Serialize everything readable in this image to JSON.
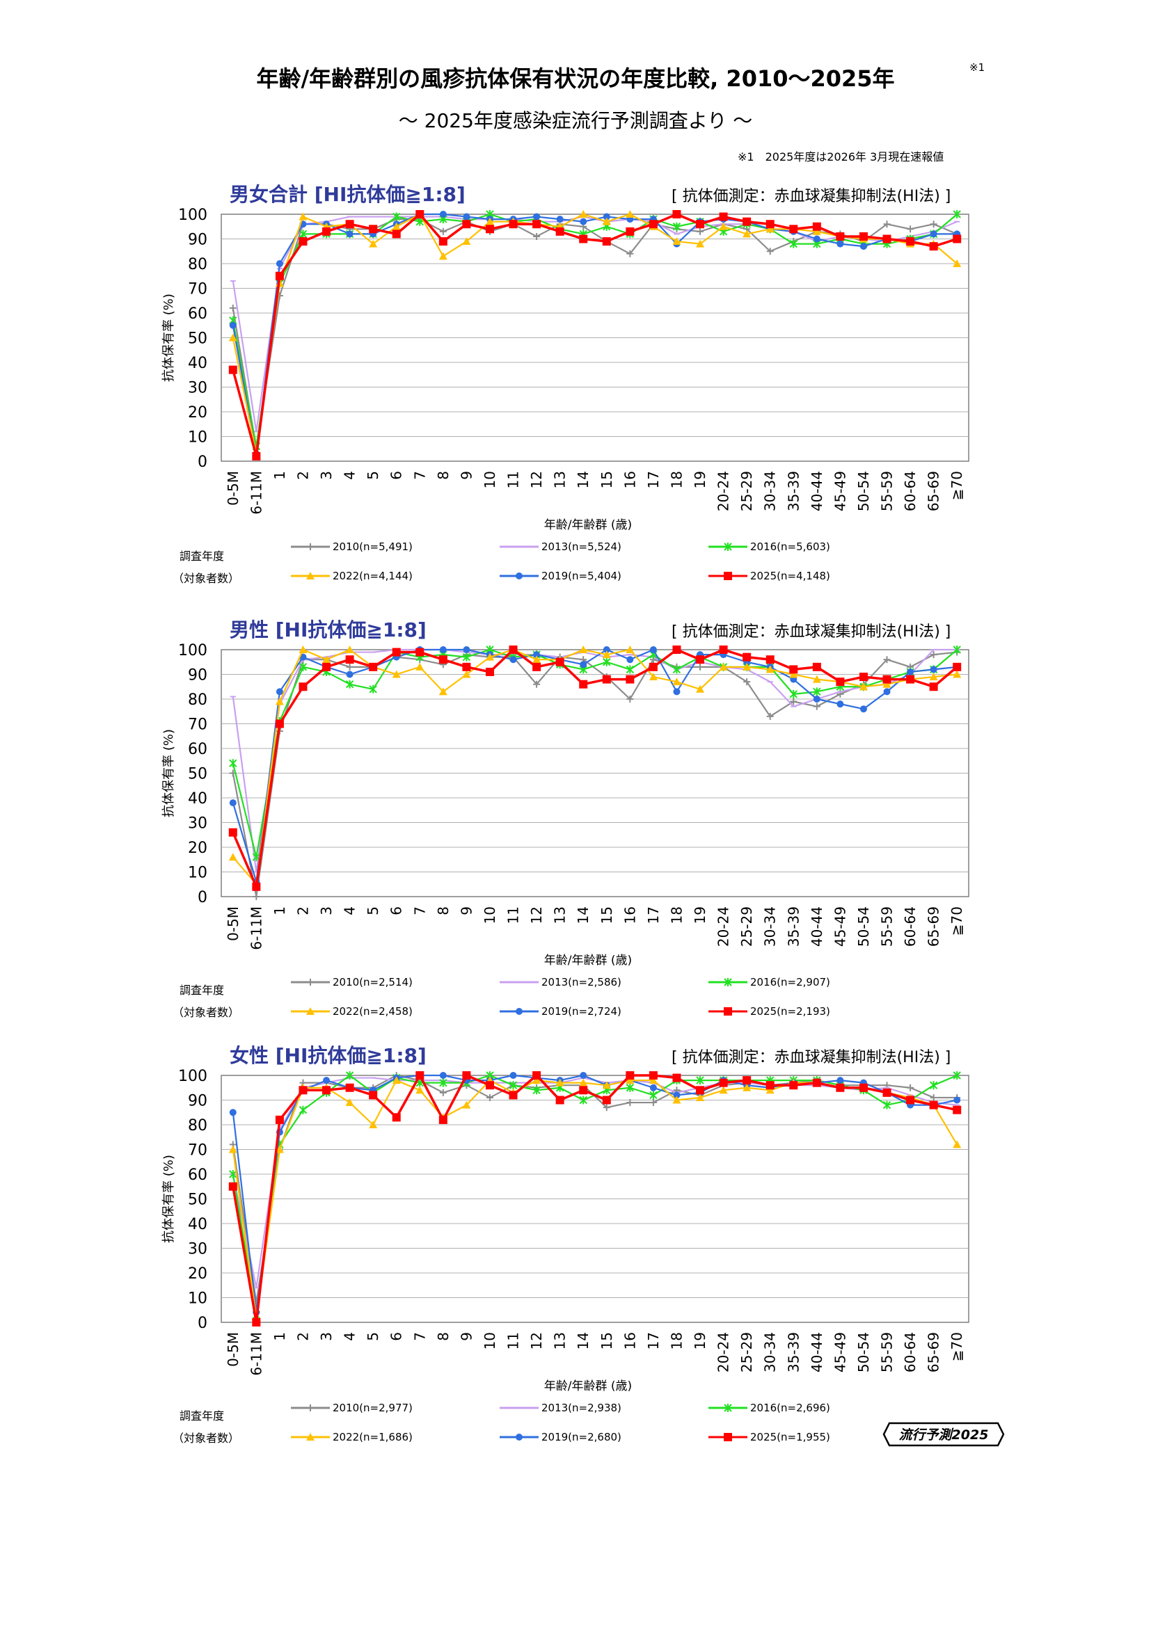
{
  "header": {
    "title": "年齢/年齢群別の風疹抗体保有状況の年度比較, 2010～2025年",
    "title_note": "※1",
    "subtitle": "～ 2025年度感染症流行予測調査より ～",
    "note": "※1　2025年度は2026年 3月現在速報値"
  },
  "legend_head": {
    "line1": "調査年度",
    "line2": "（対象者数）"
  },
  "logo_text": "流行予測2025",
  "colors": {
    "2010": "#8c8c8c",
    "2013": "#c9a0f0",
    "2016": "#21e021",
    "2019": "#2f6fe0",
    "2022": "#ffc000",
    "2025": "#ff0000",
    "title": "#2f3b9a"
  },
  "chart_data": [
    {
      "type": "line",
      "title": "男女合計 [HI抗体価≧1:8]",
      "method": "[ 抗体価測定：赤血球凝集抑制法(HI法) ]",
      "xlabel": "年齢/年齢群 (歳)",
      "ylabel": "抗体保有率 (%)",
      "ylim": [
        0,
        100
      ],
      "yticks": [
        0,
        10,
        20,
        30,
        40,
        50,
        60,
        70,
        80,
        90,
        100
      ],
      "categories": [
        "0-5M",
        "6-11M",
        "1",
        "2",
        "3",
        "4",
        "5",
        "6",
        "7",
        "8",
        "9",
        "10",
        "11",
        "12",
        "13",
        "14",
        "15",
        "16",
        "17",
        "18",
        "19",
        "20-24",
        "25-29",
        "30-34",
        "35-39",
        "40-44",
        "45-49",
        "50-54",
        "55-59",
        "60-64",
        "65-69",
        "≧70"
      ],
      "series": [
        {
          "name": "2010(n=5,491)",
          "year": "2010",
          "values": [
            62,
            5,
            67,
            96,
            96,
            94,
            94,
            98,
            98,
            93,
            97,
            93,
            96,
            91,
            96,
            95,
            89,
            84,
            96,
            94,
            93,
            96,
            94,
            85,
            89,
            93,
            92,
            89,
            96,
            94,
            96,
            92
          ]
        },
        {
          "name": "2013(n=5,524)",
          "year": "2013",
          "values": [
            73,
            12,
            78,
            96,
            97,
            99,
            99,
            99,
            99,
            99,
            98,
            98,
            98,
            97,
            97,
            99,
            97,
            98,
            97,
            92,
            95,
            96,
            96,
            94,
            93,
            89,
            91,
            90,
            89,
            91,
            93,
            97
          ]
        },
        {
          "name": "2016(n=5,603)",
          "year": "2016",
          "values": [
            57,
            6,
            72,
            92,
            92,
            92,
            92,
            99,
            97,
            98,
            97,
            100,
            97,
            98,
            94,
            92,
            95,
            92,
            98,
            95,
            97,
            93,
            96,
            94,
            88,
            88,
            90,
            88,
            88,
            90,
            92,
            100
          ]
        },
        {
          "name": "2019(n=5,404)",
          "year": "2019",
          "values": [
            55,
            3,
            80,
            96,
            96,
            92,
            92,
            96,
            100,
            100,
            99,
            98,
            98,
            99,
            98,
            97,
            99,
            98,
            98,
            88,
            97,
            98,
            97,
            94,
            93,
            90,
            88,
            87,
            90,
            89,
            92,
            92
          ]
        },
        {
          "name": "2022(n=4,144)",
          "year": "2022",
          "values": [
            50,
            3,
            72,
            99,
            95,
            96,
            88,
            95,
            100,
            83,
            89,
            97,
            97,
            96,
            95,
            100,
            97,
            100,
            95,
            89,
            88,
            95,
            92,
            94,
            94,
            93,
            91,
            90,
            90,
            88,
            88,
            80
          ]
        },
        {
          "name": "2025(n=4,148)",
          "year": "2025",
          "values": [
            37,
            2,
            75,
            89,
            93,
            96,
            94,
            92,
            100,
            89,
            96,
            94,
            96,
            96,
            93,
            90,
            89,
            93,
            96,
            100,
            96,
            99,
            97,
            96,
            94,
            95,
            91,
            91,
            90,
            89,
            87,
            90
          ]
        }
      ]
    },
    {
      "type": "line",
      "title": "男性 [HI抗体価≧1:8]",
      "method": "[ 抗体価測定：赤血球凝集抑制法(HI法) ]",
      "xlabel": "年齢/年齢群 (歳)",
      "ylabel": "抗体保有率 (%)",
      "ylim": [
        0,
        100
      ],
      "yticks": [
        0,
        10,
        20,
        30,
        40,
        50,
        60,
        70,
        80,
        90,
        100
      ],
      "categories": [
        "0-5M",
        "6-11M",
        "1",
        "2",
        "3",
        "4",
        "5",
        "6",
        "7",
        "8",
        "9",
        "10",
        "11",
        "12",
        "13",
        "14",
        "15",
        "16",
        "17",
        "18",
        "19",
        "20-24",
        "25-29",
        "30-34",
        "35-39",
        "40-44",
        "45-49",
        "50-54",
        "55-59",
        "60-64",
        "65-69",
        "≧70"
      ],
      "series": [
        {
          "name": "2010(n=2,514)",
          "year": "2010",
          "values": [
            50,
            0,
            67,
            96,
            96,
            93,
            93,
            97,
            96,
            94,
            98,
            97,
            97,
            86,
            97,
            96,
            89,
            80,
            96,
            93,
            93,
            93,
            87,
            73,
            79,
            77,
            82,
            86,
            96,
            93,
            98,
            99
          ]
        },
        {
          "name": "2013(n=2,586)",
          "year": "2013",
          "values": [
            81,
            10,
            78,
            96,
            97,
            99,
            99,
            100,
            100,
            100,
            99,
            98,
            98,
            98,
            97,
            99,
            97,
            98,
            97,
            92,
            95,
            93,
            92,
            87,
            77,
            80,
            83,
            85,
            86,
            90,
            100,
            100
          ]
        },
        {
          "name": "2016(n=2,907)",
          "year": "2016",
          "values": [
            54,
            16,
            71,
            93,
            91,
            86,
            84,
            99,
            97,
            98,
            97,
            100,
            97,
            98,
            94,
            92,
            95,
            92,
            98,
            92,
            97,
            93,
            93,
            93,
            82,
            83,
            85,
            85,
            88,
            91,
            92,
            100
          ]
        },
        {
          "name": "2019(n=2,724)",
          "year": "2019",
          "values": [
            38,
            6,
            83,
            97,
            93,
            90,
            93,
            97,
            100,
            100,
            100,
            98,
            96,
            98,
            96,
            94,
            100,
            96,
            100,
            83,
            98,
            98,
            95,
            93,
            88,
            80,
            78,
            76,
            83,
            91,
            92,
            93
          ]
        },
        {
          "name": "2022(n=2,458)",
          "year": "2022",
          "values": [
            16,
            5,
            79,
            100,
            96,
            100,
            93,
            90,
            93,
            83,
            90,
            97,
            100,
            96,
            96,
            100,
            98,
            100,
            89,
            87,
            84,
            93,
            93,
            92,
            90,
            88,
            87,
            85,
            86,
            88,
            89,
            90
          ]
        },
        {
          "name": "2025(n=2,193)",
          "year": "2025",
          "values": [
            26,
            4,
            70,
            85,
            93,
            96,
            93,
            99,
            99,
            96,
            93,
            91,
            100,
            93,
            95,
            86,
            88,
            88,
            93,
            100,
            96,
            100,
            97,
            96,
            92,
            93,
            87,
            89,
            88,
            88,
            85,
            93
          ]
        }
      ]
    },
    {
      "type": "line",
      "title": "女性 [HI抗体価≧1:8]",
      "method": "[ 抗体価測定：赤血球凝集抑制法(HI法) ]",
      "xlabel": "年齢/年齢群 (歳)",
      "ylabel": "抗体保有率 (%)",
      "ylim": [
        0,
        100
      ],
      "yticks": [
        0,
        10,
        20,
        30,
        40,
        50,
        60,
        70,
        80,
        90,
        100
      ],
      "categories": [
        "0-5M",
        "6-11M",
        "1",
        "2",
        "3",
        "4",
        "5",
        "6",
        "7",
        "8",
        "9",
        "10",
        "11",
        "12",
        "13",
        "14",
        "15",
        "16",
        "17",
        "18",
        "19",
        "20-24",
        "25-29",
        "30-34",
        "35-39",
        "40-44",
        "45-49",
        "50-54",
        "55-59",
        "60-64",
        "65-69",
        "≧70"
      ],
      "series": [
        {
          "name": "2010(n=2,977)",
          "year": "2010",
          "values": [
            72,
            8,
            70,
            97,
            97,
            95,
            95,
            100,
            98,
            93,
            96,
            91,
            96,
            95,
            96,
            96,
            87,
            89,
            89,
            94,
            92,
            96,
            97,
            96,
            97,
            98,
            96,
            96,
            96,
            95,
            91,
            91
          ]
        },
        {
          "name": "2013(n=2,938)",
          "year": "2013",
          "values": [
            60,
            14,
            78,
            95,
            97,
            99,
            99,
            98,
            98,
            98,
            97,
            97,
            97,
            97,
            97,
            99,
            97,
            98,
            97,
            93,
            95,
            97,
            97,
            96,
            96,
            96,
            95,
            94,
            95,
            92,
            89,
            88
          ]
        },
        {
          "name": "2016(n=2,696)",
          "year": "2016",
          "values": [
            60,
            3,
            72,
            86,
            93,
            100,
            93,
            99,
            97,
            97,
            97,
            100,
            96,
            94,
            95,
            90,
            94,
            95,
            92,
            98,
            98,
            98,
            98,
            98,
            98,
            98,
            96,
            94,
            88,
            90,
            96,
            100
          ]
        },
        {
          "name": "2019(n=2,680)",
          "year": "2019",
          "values": [
            85,
            4,
            77,
            94,
            98,
            95,
            94,
            99,
            100,
            100,
            98,
            98,
            100,
            99,
            98,
            100,
            96,
            98,
            95,
            92,
            93,
            98,
            96,
            95,
            97,
            97,
            98,
            97,
            93,
            88,
            88,
            90
          ]
        },
        {
          "name": "2022(n=1,686)",
          "year": "2022",
          "values": [
            70,
            2,
            70,
            95,
            95,
            89,
            80,
            98,
            94,
            83,
            88,
            98,
            93,
            98,
            97,
            97,
            96,
            98,
            98,
            90,
            91,
            94,
            95,
            94,
            97,
            97,
            95,
            95,
            93,
            91,
            88,
            72
          ]
        },
        {
          "name": "2025(n=1,955)",
          "year": "2025",
          "values": [
            55,
            0,
            82,
            94,
            94,
            95,
            92,
            83,
            100,
            82,
            100,
            96,
            92,
            100,
            90,
            94,
            90,
            100,
            100,
            99,
            94,
            97,
            98,
            96,
            96,
            97,
            95,
            95,
            93,
            90,
            88,
            86
          ]
        }
      ]
    }
  ]
}
